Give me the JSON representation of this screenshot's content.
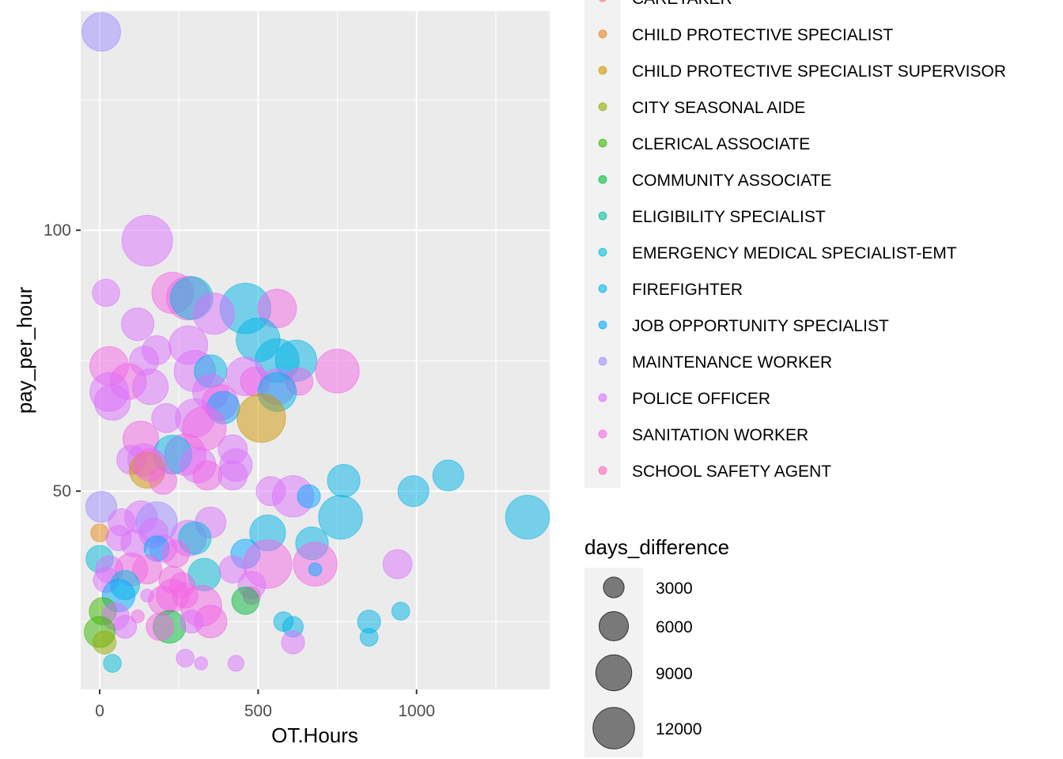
{
  "chart_data": {
    "type": "scatter",
    "title": "",
    "xlabel": "OT.Hours",
    "ylabel": "pay_per_hour",
    "xlim": [
      -60,
      1420
    ],
    "ylim": [
      12,
      142
    ],
    "x_ticks": [
      0,
      500,
      1000
    ],
    "x_tick_labels": [
      "0",
      "500",
      "1000"
    ],
    "y_ticks": [
      50,
      100
    ],
    "y_tick_labels": [
      "50",
      "100"
    ],
    "grid": true,
    "legend_placement": "right",
    "color_legend": {
      "entries": [
        {
          "label": "CARETAKER",
          "color": "#F8766D"
        },
        {
          "label": "CHILD PROTECTIVE SPECIALIST",
          "color": "#E7861B"
        },
        {
          "label": "CHILD PROTECTIVE SPECIALIST SUPERVISOR",
          "color": "#D09400"
        },
        {
          "label": "CITY SEASONAL AIDE",
          "color": "#93AA00"
        },
        {
          "label": "CLERICAL ASSOCIATE",
          "color": "#39B600"
        },
        {
          "label": "COMMUNITY ASSOCIATE",
          "color": "#00BA38"
        },
        {
          "label": "ELIGIBILITY SPECIALIST",
          "color": "#00C19F"
        },
        {
          "label": "EMERGENCY MEDICAL SPECIALIST-EMT",
          "color": "#00BCD8"
        },
        {
          "label": "FIREFIGHTER",
          "color": "#00B4E7"
        },
        {
          "label": "JOB OPPORTUNITY SPECIALIST",
          "color": "#00A9FF"
        },
        {
          "label": "MAINTENANCE WORKER",
          "color": "#9C8DFF"
        },
        {
          "label": "POLICE OFFICER",
          "color": "#DB72FB"
        },
        {
          "label": "SANITATION WORKER",
          "color": "#F365E6"
        },
        {
          "label": "SCHOOL SAFETY AGENT",
          "color": "#FF62BC"
        }
      ]
    },
    "size_legend": {
      "title": "days_difference",
      "entries": [
        {
          "label": "3000",
          "value": 3000
        },
        {
          "label": "6000",
          "value": 6000
        },
        {
          "label": "9000",
          "value": 9000
        },
        {
          "label": "12000",
          "value": 12000
        }
      ]
    },
    "points": [
      {
        "x": 5,
        "y": 138,
        "size": 7000,
        "series": "MAINTENANCE WORKER"
      },
      {
        "x": 150,
        "y": 98,
        "size": 12000,
        "series": "POLICE OFFICER"
      },
      {
        "x": 20,
        "y": 88,
        "size": 3500,
        "series": "POLICE OFFICER"
      },
      {
        "x": 230,
        "y": 88,
        "size": 8000,
        "series": "SANITATION WORKER"
      },
      {
        "x": 280,
        "y": 87,
        "size": 9000,
        "series": "SANITATION WORKER"
      },
      {
        "x": 290,
        "y": 87,
        "size": 8500,
        "series": "EMERGENCY MEDICAL SPECIALIST-EMT"
      },
      {
        "x": 460,
        "y": 85,
        "size": 12000,
        "series": "FIREFIGHTER"
      },
      {
        "x": 560,
        "y": 85,
        "size": 7000,
        "series": "SANITATION WORKER"
      },
      {
        "x": 360,
        "y": 84,
        "size": 8000,
        "series": "POLICE OFFICER"
      },
      {
        "x": 120,
        "y": 82,
        "size": 5000,
        "series": "POLICE OFFICER"
      },
      {
        "x": 500,
        "y": 79,
        "size": 9000,
        "series": "FIREFIGHTER"
      },
      {
        "x": 280,
        "y": 78,
        "size": 7000,
        "series": "POLICE OFFICER"
      },
      {
        "x": 180,
        "y": 77,
        "size": 4000,
        "series": "POLICE OFFICER"
      },
      {
        "x": 560,
        "y": 75,
        "size": 9000,
        "series": "FIREFIGHTER"
      },
      {
        "x": 620,
        "y": 75,
        "size": 8000,
        "series": "FIREFIGHTER"
      },
      {
        "x": 30,
        "y": 74,
        "size": 7000,
        "series": "SANITATION WORKER"
      },
      {
        "x": 140,
        "y": 75,
        "size": 4000,
        "series": "POLICE OFFICER"
      },
      {
        "x": 300,
        "y": 73,
        "size": 8000,
        "series": "POLICE OFFICER"
      },
      {
        "x": 750,
        "y": 73,
        "size": 9000,
        "series": "SANITATION WORKER"
      },
      {
        "x": 350,
        "y": 73,
        "size": 5000,
        "series": "FIREFIGHTER"
      },
      {
        "x": 460,
        "y": 72,
        "size": 7000,
        "series": "POLICE OFFICER"
      },
      {
        "x": 90,
        "y": 71,
        "size": 6000,
        "series": "SANITATION WORKER"
      },
      {
        "x": 490,
        "y": 71,
        "size": 4000,
        "series": "SANITATION WORKER"
      },
      {
        "x": 560,
        "y": 70,
        "size": 6000,
        "series": "POLICE OFFICER"
      },
      {
        "x": 630,
        "y": 71,
        "size": 3500,
        "series": "SANITATION WORKER"
      },
      {
        "x": 30,
        "y": 69,
        "size": 7000,
        "series": "POLICE OFFICER"
      },
      {
        "x": 160,
        "y": 70,
        "size": 6000,
        "series": "POLICE OFFICER"
      },
      {
        "x": 350,
        "y": 69,
        "size": 6000,
        "series": "POLICE OFFICER"
      },
      {
        "x": 560,
        "y": 69,
        "size": 7000,
        "series": "FIREFIGHTER"
      },
      {
        "x": 40,
        "y": 67,
        "size": 6000,
        "series": "POLICE OFFICER"
      },
      {
        "x": 380,
        "y": 67,
        "size": 6000,
        "series": "SANITATION WORKER"
      },
      {
        "x": 390,
        "y": 66,
        "size": 5000,
        "series": "JOB OPPORTUNITY SPECIALIST"
      },
      {
        "x": 210,
        "y": 64,
        "size": 4000,
        "series": "POLICE OFFICER"
      },
      {
        "x": 300,
        "y": 64,
        "size": 7000,
        "series": "POLICE OFFICER"
      },
      {
        "x": 510,
        "y": 64,
        "size": 11000,
        "series": "CHILD PROTECTIVE SPECIALIST SUPERVISOR"
      },
      {
        "x": 330,
        "y": 62,
        "size": 9000,
        "series": "SANITATION WORKER"
      },
      {
        "x": 130,
        "y": 60,
        "size": 6000,
        "series": "SANITATION WORKER"
      },
      {
        "x": 270,
        "y": 57,
        "size": 8000,
        "series": "SANITATION WORKER"
      },
      {
        "x": 230,
        "y": 57,
        "size": 7000,
        "series": "FIREFIGHTER"
      },
      {
        "x": 420,
        "y": 58,
        "size": 4000,
        "series": "POLICE OFFICER"
      },
      {
        "x": 100,
        "y": 56,
        "size": 4000,
        "series": "POLICE OFFICER"
      },
      {
        "x": 140,
        "y": 56,
        "size": 5000,
        "series": "POLICE OFFICER"
      },
      {
        "x": 310,
        "y": 55,
        "size": 6000,
        "series": "POLICE OFFICER"
      },
      {
        "x": 430,
        "y": 55,
        "size": 5000,
        "series": "POLICE OFFICER"
      },
      {
        "x": 150,
        "y": 54,
        "size": 6000,
        "series": "CHILD PROTECTIVE SPECIALIST SUPERVISOR"
      },
      {
        "x": 160,
        "y": 55,
        "size": 5000,
        "series": "SANITATION WORKER"
      },
      {
        "x": 200,
        "y": 52,
        "size": 3500,
        "series": "SANITATION WORKER"
      },
      {
        "x": 340,
        "y": 53,
        "size": 4000,
        "series": "SANITATION WORKER"
      },
      {
        "x": 420,
        "y": 53,
        "size": 4000,
        "series": "POLICE OFFICER"
      },
      {
        "x": 770,
        "y": 52,
        "size": 5000,
        "series": "FIREFIGHTER"
      },
      {
        "x": 1100,
        "y": 53,
        "size": 4500,
        "series": "FIREFIGHTER"
      },
      {
        "x": 990,
        "y": 50,
        "size": 4500,
        "series": "FIREFIGHTER"
      },
      {
        "x": 540,
        "y": 50,
        "size": 4000,
        "series": "POLICE OFFICER"
      },
      {
        "x": 610,
        "y": 49,
        "size": 8000,
        "series": "POLICE OFFICER"
      },
      {
        "x": 660,
        "y": 49,
        "size": 2500,
        "series": "JOB OPPORTUNITY SPECIALIST"
      },
      {
        "x": 1350,
        "y": 45,
        "size": 9000,
        "series": "FIREFIGHTER"
      },
      {
        "x": 760,
        "y": 45,
        "size": 9000,
        "series": "FIREFIGHTER"
      },
      {
        "x": 5,
        "y": 47,
        "size": 4500,
        "series": "MAINTENANCE WORKER"
      },
      {
        "x": 130,
        "y": 45,
        "size": 5000,
        "series": "POLICE OFFICER"
      },
      {
        "x": 180,
        "y": 44,
        "size": 8000,
        "series": "MAINTENANCE WORKER"
      },
      {
        "x": 350,
        "y": 44,
        "size": 4500,
        "series": "POLICE OFFICER"
      },
      {
        "x": 70,
        "y": 44,
        "size": 3500,
        "series": "POLICE OFFICER"
      },
      {
        "x": 170,
        "y": 42,
        "size": 4000,
        "series": "POLICE OFFICER"
      },
      {
        "x": 0,
        "y": 42,
        "size": 1500,
        "series": "CHILD PROTECTIVE SPECIALIST"
      },
      {
        "x": 530,
        "y": 42,
        "size": 6000,
        "series": "FIREFIGHTER"
      },
      {
        "x": 280,
        "y": 41,
        "size": 6000,
        "series": "POLICE OFFICER"
      },
      {
        "x": 300,
        "y": 41,
        "size": 5000,
        "series": "EMERGENCY MEDICAL SPECIALIST-EMT"
      },
      {
        "x": 670,
        "y": 40,
        "size": 5000,
        "series": "FIREFIGHTER"
      },
      {
        "x": 60,
        "y": 41,
        "size": 3000,
        "series": "POLICE OFFICER"
      },
      {
        "x": 110,
        "y": 40,
        "size": 3500,
        "series": "POLICE OFFICER"
      },
      {
        "x": 200,
        "y": 39,
        "size": 3500,
        "series": "POLICE OFFICER"
      },
      {
        "x": 180,
        "y": 39,
        "size": 3000,
        "series": "JOB OPPORTUNITY SPECIALIST"
      },
      {
        "x": 240,
        "y": 38,
        "size": 3500,
        "series": "SANITATION WORKER"
      },
      {
        "x": 460,
        "y": 38,
        "size": 4000,
        "series": "JOB OPPORTUNITY SPECIALIST"
      },
      {
        "x": 530,
        "y": 36,
        "size": 11000,
        "series": "SANITATION WORKER"
      },
      {
        "x": 680,
        "y": 36,
        "size": 9000,
        "series": "SANITATION WORKER"
      },
      {
        "x": 940,
        "y": 36,
        "size": 4000,
        "series": "POLICE OFFICER"
      },
      {
        "x": 680,
        "y": 35,
        "size": 800,
        "series": "JOB OPPORTUNITY SPECIALIST"
      },
      {
        "x": 0,
        "y": 37,
        "size": 3500,
        "series": "EMERGENCY MEDICAL SPECIALIST-EMT"
      },
      {
        "x": 30,
        "y": 35,
        "size": 3500,
        "series": "POLICE OFFICER"
      },
      {
        "x": 100,
        "y": 35,
        "size": 5000,
        "series": "SANITATION WORKER"
      },
      {
        "x": 150,
        "y": 35,
        "size": 4000,
        "series": "SANITATION WORKER"
      },
      {
        "x": 330,
        "y": 34,
        "size": 5000,
        "series": "EMERGENCY MEDICAL SPECIALIST-EMT"
      },
      {
        "x": 420,
        "y": 35,
        "size": 3500,
        "series": "POLICE OFFICER"
      },
      {
        "x": 20,
        "y": 33,
        "size": 3000,
        "series": "POLICE OFFICER"
      },
      {
        "x": 230,
        "y": 33,
        "size": 3500,
        "series": "SANITATION WORKER"
      },
      {
        "x": 260,
        "y": 32,
        "size": 3000,
        "series": "SANITATION WORKER"
      },
      {
        "x": 80,
        "y": 32,
        "size": 4000,
        "series": "EMERGENCY MEDICAL SPECIALIST-EMT"
      },
      {
        "x": 60,
        "y": 30,
        "size": 5000,
        "series": "JOB OPPORTUNITY SPECIALIST"
      },
      {
        "x": 230,
        "y": 30,
        "size": 5000,
        "series": "SANITATION WORKER"
      },
      {
        "x": 270,
        "y": 30,
        "size": 3000,
        "series": "SANITATION WORKER"
      },
      {
        "x": 480,
        "y": 32,
        "size": 3500,
        "series": "POLICE OFFICER"
      },
      {
        "x": 150,
        "y": 30,
        "size": 800,
        "series": "POLICE OFFICER"
      },
      {
        "x": 480,
        "y": 30,
        "size": 1500,
        "series": "SANITATION WORKER"
      },
      {
        "x": 460,
        "y": 29,
        "size": 3500,
        "series": "COMMUNITY ASSOCIATE"
      },
      {
        "x": 200,
        "y": 29,
        "size": 4000,
        "series": "SANITATION WORKER"
      },
      {
        "x": 320,
        "y": 28,
        "size": 8000,
        "series": "SANITATION WORKER"
      },
      {
        "x": 10,
        "y": 27,
        "size": 3500,
        "series": "CLERICAL ASSOCIATE"
      },
      {
        "x": 50,
        "y": 26,
        "size": 3500,
        "series": "POLICE OFFICER"
      },
      {
        "x": 950,
        "y": 27,
        "size": 1500,
        "series": "FIREFIGHTER"
      },
      {
        "x": 120,
        "y": 26,
        "size": 800,
        "series": "SANITATION WORKER"
      },
      {
        "x": 350,
        "y": 25,
        "size": 5000,
        "series": "SANITATION WORKER"
      },
      {
        "x": 580,
        "y": 25,
        "size": 1800,
        "series": "FIREFIGHTER"
      },
      {
        "x": 610,
        "y": 24,
        "size": 2000,
        "series": "FIREFIGHTER"
      },
      {
        "x": 850,
        "y": 25,
        "size": 2500,
        "series": "FIREFIGHTER"
      },
      {
        "x": 220,
        "y": 24,
        "size": 5000,
        "series": "COMMUNITY ASSOCIATE"
      },
      {
        "x": 190,
        "y": 24,
        "size": 3500,
        "series": "SANITATION WORKER"
      },
      {
        "x": 290,
        "y": 25,
        "size": 2500,
        "series": "POLICE OFFICER"
      },
      {
        "x": 80,
        "y": 24,
        "size": 2500,
        "series": "POLICE OFFICER"
      },
      {
        "x": 0,
        "y": 23,
        "size": 4500,
        "series": "CLERICAL ASSOCIATE"
      },
      {
        "x": 15,
        "y": 21,
        "size": 2500,
        "series": "CITY SEASONAL AIDE"
      },
      {
        "x": 850,
        "y": 22,
        "size": 1500,
        "series": "FIREFIGHTER"
      },
      {
        "x": 610,
        "y": 21,
        "size": 2500,
        "series": "POLICE OFFICER"
      },
      {
        "x": 270,
        "y": 18,
        "size": 1500,
        "series": "POLICE OFFICER"
      },
      {
        "x": 320,
        "y": 17,
        "size": 800,
        "series": "POLICE OFFICER"
      },
      {
        "x": 430,
        "y": 17,
        "size": 1200,
        "series": "POLICE OFFICER"
      },
      {
        "x": 40,
        "y": 17,
        "size": 1500,
        "series": "EMERGENCY MEDICAL SPECIALIST-EMT"
      }
    ]
  }
}
